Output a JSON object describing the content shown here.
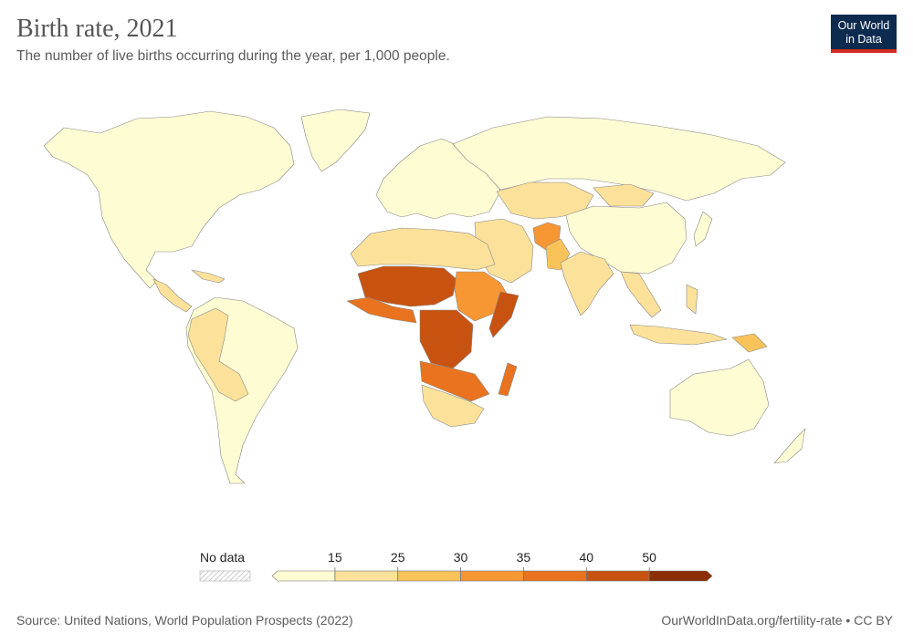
{
  "header": {
    "title": "Birth rate, 2021",
    "subtitle": "The number of live births occurring during the year, per 1,000 people.",
    "logo_line1": "Our World",
    "logo_line2": "in Data"
  },
  "legend": {
    "no_data_label": "No data",
    "ticks": [
      "15",
      "25",
      "30",
      "35",
      "40",
      "50"
    ],
    "bins": [
      {
        "range": "0–15",
        "color": "#fefcd3"
      },
      {
        "range": "15–25",
        "color": "#fce19a"
      },
      {
        "range": "25–30",
        "color": "#fac359"
      },
      {
        "range": "30–35",
        "color": "#f79733"
      },
      {
        "range": "35–40",
        "color": "#e9731f"
      },
      {
        "range": "40–50",
        "color": "#c85310"
      },
      {
        "range": "50+",
        "color": "#8c2d04"
      }
    ]
  },
  "footer": {
    "source": "Source: United Nations, World Population Prospects (2022)",
    "link": "OurWorldInData.org/fertility-rate • CC BY"
  },
  "colors": {
    "no_data_fill": "#ffffff",
    "border": "#999999"
  }
}
